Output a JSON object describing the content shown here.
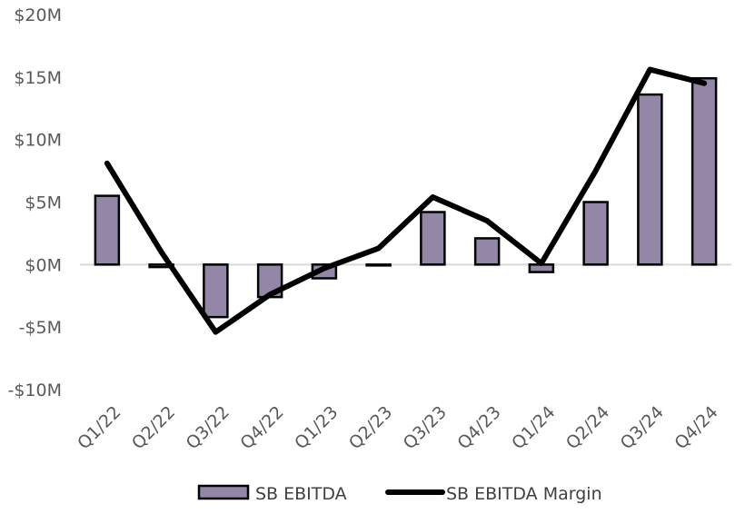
{
  "chart_data": {
    "type": "bar",
    "categories": [
      "Q1/22",
      "Q2/22",
      "Q3/22",
      "Q4/22",
      "Q1/23",
      "Q2/23",
      "Q3/23",
      "Q4/23",
      "Q1/24",
      "Q2/24",
      "Q3/24",
      "Q4/24"
    ],
    "ylim": [
      -10,
      20
    ],
    "y_ticks": [
      20,
      15,
      10,
      5,
      0,
      -5,
      -10
    ],
    "y_tick_labels": [
      "$20M",
      "$15M",
      "$10M",
      "$5M",
      "$0M",
      "-$5M",
      "-$10M"
    ],
    "grid": false,
    "legend_position": "bottom",
    "series": [
      {
        "name": "SB EBITDA",
        "type": "bar",
        "color": "#9386a6",
        "values": [
          5.5,
          -0.2,
          -4.2,
          -2.6,
          -1.1,
          0.0,
          4.2,
          2.1,
          -0.6,
          5.0,
          13.6,
          14.9
        ]
      },
      {
        "name": "SB EBITDA Margin",
        "type": "line",
        "color": "#000000",
        "values": [
          8.1,
          1.0,
          -5.4,
          -2.4,
          -0.3,
          1.3,
          5.4,
          3.5,
          0.1,
          7.5,
          15.6,
          14.5
        ]
      }
    ],
    "title": "",
    "xlabel": "",
    "ylabel": ""
  }
}
